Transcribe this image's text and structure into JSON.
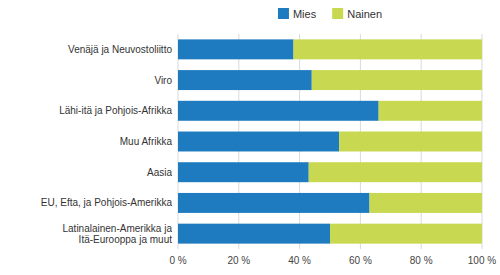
{
  "chart_data": {
    "type": "bar",
    "orientation": "horizontal",
    "stacked": true,
    "categories": [
      "Venäjä ja Neuvostoliitto",
      "Viro",
      "Lähi-itä ja Pohjois-Afrikka",
      "Muu Afrikka",
      "Aasia",
      "EU, Efta, ja Pohjois-Amerikka",
      "Latinalainen-Amerikka ja\nItä-Eurooppa ja muut"
    ],
    "series": [
      {
        "name": "Mies",
        "color": "#1f7bbf",
        "values": [
          38,
          44,
          66,
          53,
          43,
          63,
          50
        ]
      },
      {
        "name": "Nainen",
        "color": "#c8d850",
        "values": [
          62,
          56,
          34,
          47,
          57,
          37,
          50
        ]
      }
    ],
    "xlim": [
      0,
      100
    ],
    "xticks": [
      {
        "value": 0,
        "label": "0 %"
      },
      {
        "value": 20,
        "label": "20 %"
      },
      {
        "value": 40,
        "label": "40 %"
      },
      {
        "value": 60,
        "label": "60 %"
      },
      {
        "value": 80,
        "label": "80 %"
      },
      {
        "value": 100,
        "label": "100 %"
      }
    ],
    "grid": true,
    "legend": "top"
  }
}
